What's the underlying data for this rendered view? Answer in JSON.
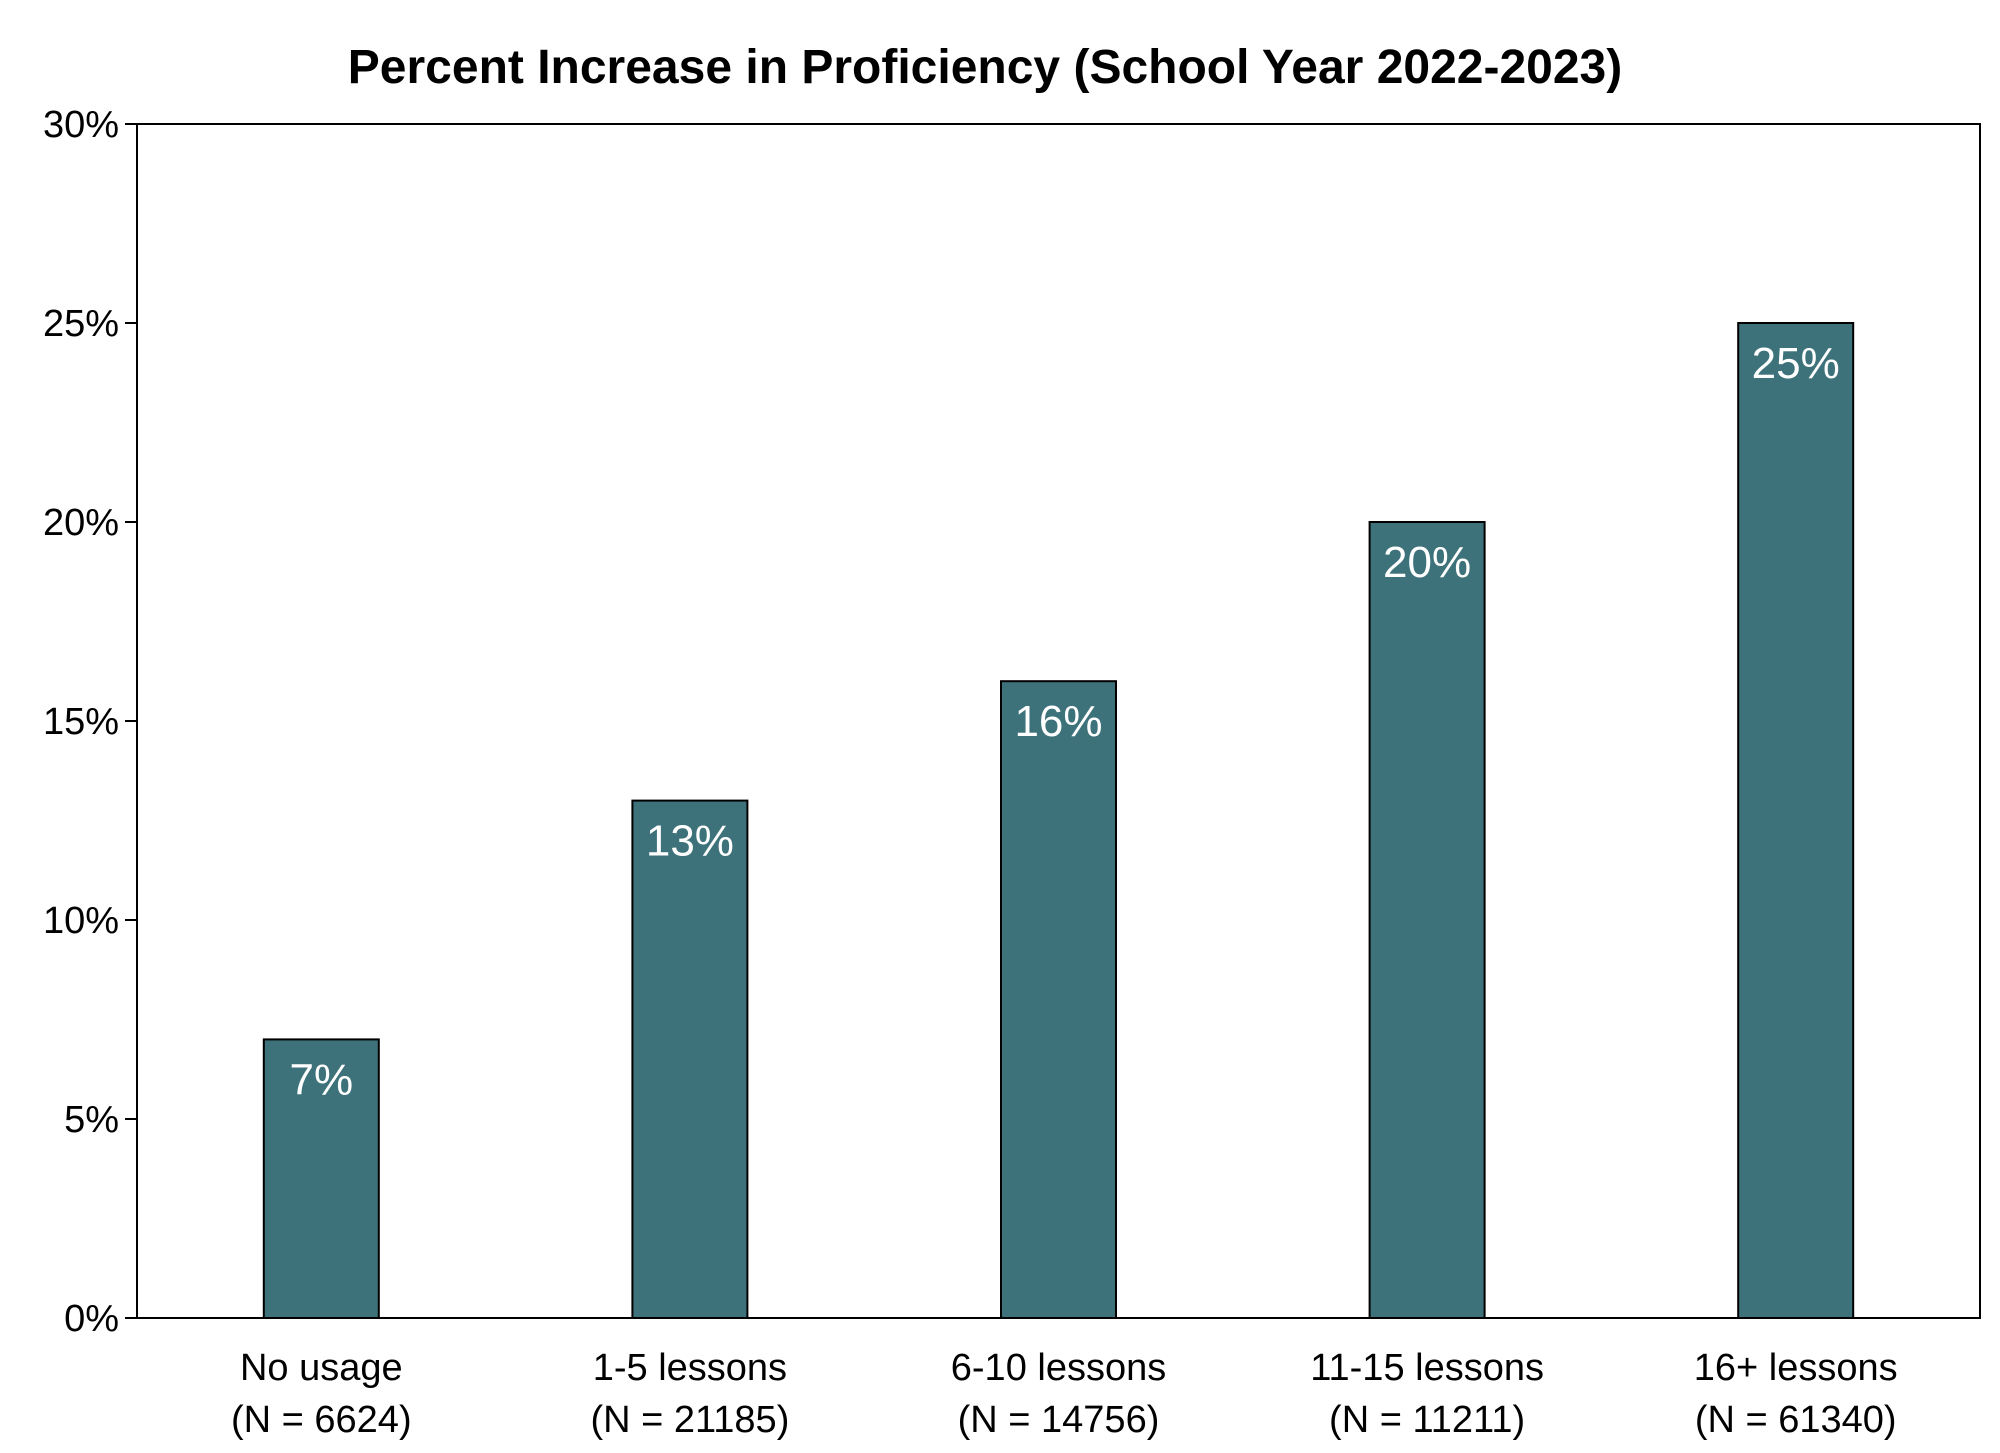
{
  "chart_data": {
    "type": "bar",
    "title": "Percent Increase in Proficiency (School Year 2022-2023)",
    "xlabel": "",
    "ylabel": "",
    "categories": [
      [
        "No usage",
        "(N = 6624)"
      ],
      [
        "1-5 lessons",
        "(N = 21185)"
      ],
      [
        "6-10 lessons",
        "(N = 14756)"
      ],
      [
        "11-15 lessons",
        "(N = 11211)"
      ],
      [
        "16+ lessons",
        "(N = 61340)"
      ]
    ],
    "values": [
      7,
      13,
      16,
      20,
      25
    ],
    "value_labels": [
      "7%",
      "13%",
      "16%",
      "20%",
      "25%"
    ],
    "ylim": [
      0,
      30
    ],
    "yticks": [
      0,
      5,
      10,
      15,
      20,
      25,
      30
    ],
    "ytick_labels": [
      "0%",
      "5%",
      "10%",
      "15%",
      "20%",
      "25%",
      "30%"
    ],
    "grid": false,
    "legend": "none",
    "colors": {
      "bar": "#3e727b",
      "bar_outline": "#000000",
      "bar_label": "#ffffff"
    }
  }
}
